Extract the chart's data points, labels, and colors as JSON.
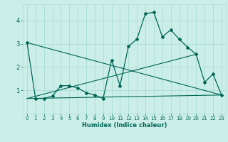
{
  "title": "",
  "xlabel": "Humidex (Indice chaleur)",
  "bg_color": "#cceee8",
  "grid_color": "#aaddd5",
  "line_color": "#006655",
  "xlim": [
    -0.5,
    23.5
  ],
  "ylim": [
    0,
    4.7
  ],
  "xticks": [
    0,
    1,
    2,
    3,
    4,
    5,
    6,
    7,
    8,
    9,
    10,
    11,
    12,
    13,
    14,
    15,
    16,
    17,
    18,
    19,
    20,
    21,
    22,
    23
  ],
  "yticks": [
    1,
    2,
    3,
    4
  ],
  "main_curve_x": [
    0,
    1,
    2,
    3,
    4,
    5,
    6,
    7,
    8,
    9,
    10,
    11,
    12,
    13,
    14,
    15,
    16,
    17,
    18,
    19,
    20,
    21,
    22,
    23
  ],
  "main_curve_y": [
    3.05,
    0.65,
    0.65,
    0.75,
    1.2,
    1.2,
    1.1,
    0.9,
    0.8,
    0.65,
    2.3,
    1.2,
    2.9,
    3.2,
    4.3,
    4.35,
    3.3,
    3.6,
    3.2,
    2.85,
    2.55,
    1.35,
    1.7,
    0.8
  ],
  "trend_lines": [
    {
      "x": [
        0,
        23
      ],
      "y": [
        3.05,
        0.8
      ]
    },
    {
      "x": [
        0,
        20
      ],
      "y": [
        0.65,
        2.55
      ]
    },
    {
      "x": [
        0,
        23
      ],
      "y": [
        0.65,
        0.8
      ]
    }
  ]
}
